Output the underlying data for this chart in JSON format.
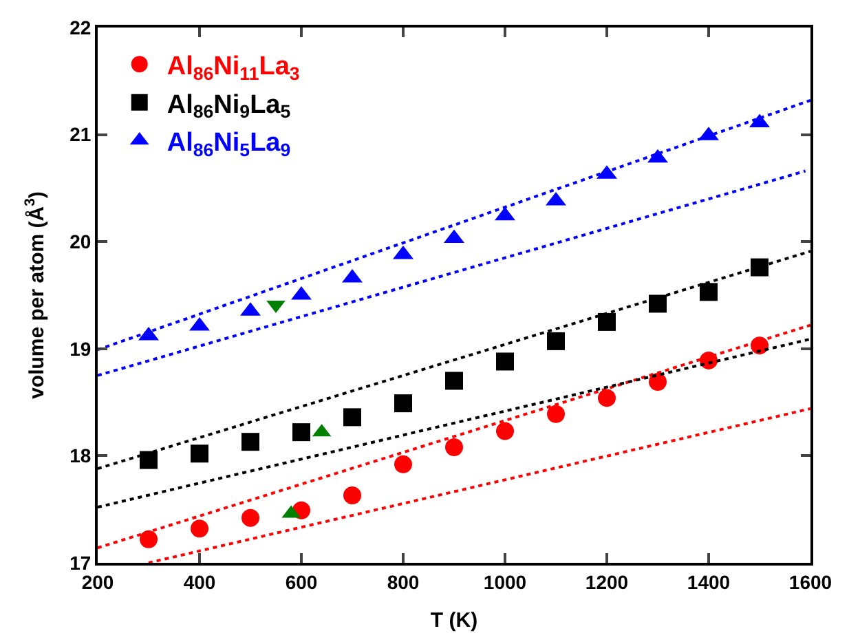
{
  "chart_data": {
    "type": "scatter",
    "xlabel": "T (K)",
    "ylabel": "volume per atom (Å$^{3}$)",
    "x": [
      300,
      400,
      500,
      600,
      700,
      800,
      900,
      1000,
      1100,
      1200,
      1300,
      1400,
      1500
    ],
    "series": [
      {
        "name": "Al$_{86}$Ni$_{11}$La$_{3}$",
        "color": "#ff0000",
        "marker": "circle",
        "values": [
          17.22,
          17.32,
          17.42,
          17.49,
          17.63,
          17.92,
          18.08,
          18.23,
          18.39,
          18.54,
          18.69,
          18.89,
          19.03
        ]
      },
      {
        "name": "Al$_{86}$Ni$_{9}$La$_{5}$",
        "color": "#000000",
        "marker": "square",
        "values": [
          17.96,
          18.02,
          18.13,
          18.22,
          18.36,
          18.49,
          18.7,
          18.88,
          19.07,
          19.25,
          19.42,
          19.53,
          19.76
        ]
      },
      {
        "name": "Al$_{86}$Ni$_{5}$La$_{9}$",
        "color": "#0000ff",
        "marker": "triangle",
        "values": [
          19.12,
          19.21,
          19.35,
          19.5,
          19.66,
          19.88,
          20.03,
          20.24,
          20.38,
          20.63,
          20.78,
          20.99,
          21.11
        ]
      },
      {
        "type": "line",
        "line_style": "dotted",
        "marker": "none",
        "color": "#ff0000",
        "x": [
          200,
          1600
        ],
        "values": [
          17.14,
          19.22
        ]
      },
      {
        "type": "line",
        "line_style": "dotted",
        "marker": "none",
        "color": "#ff0000",
        "x": [
          300,
          1600
        ],
        "values": [
          17.0,
          18.44
        ]
      },
      {
        "type": "line",
        "line_style": "dotted",
        "marker": "none",
        "color": "#000000",
        "x": [
          200,
          1600
        ],
        "values": [
          17.88,
          19.91
        ]
      },
      {
        "type": "line",
        "line_style": "dotted",
        "marker": "none",
        "color": "#000000",
        "x": [
          200,
          1600
        ],
        "values": [
          17.52,
          19.09
        ]
      },
      {
        "type": "line",
        "line_style": "dotted",
        "marker": "none",
        "color": "#0000ff",
        "x": [
          200,
          1600
        ],
        "values": [
          18.99,
          21.32
        ]
      },
      {
        "type": "line",
        "line_style": "dotted",
        "marker": "none",
        "color": "#0000ff",
        "x": [
          200,
          1590
        ],
        "values": [
          18.75,
          20.66
        ]
      },
      {
        "type": "scatter",
        "marker": "triangle",
        "color": "#008000",
        "x": [
          550,
          640,
          580
        ],
        "values": [
          19.41,
          18.22,
          17.46
        ]
      }
    ],
    "xlim": [
      200,
      1600
    ],
    "xticks": [
      200,
      400,
      600,
      800,
      1000,
      1200,
      1400,
      1600
    ],
    "ylim": [
      17,
      22
    ],
    "yticks": [
      17,
      18,
      19,
      20,
      21,
      22
    ],
    "legend": "top left"
  }
}
